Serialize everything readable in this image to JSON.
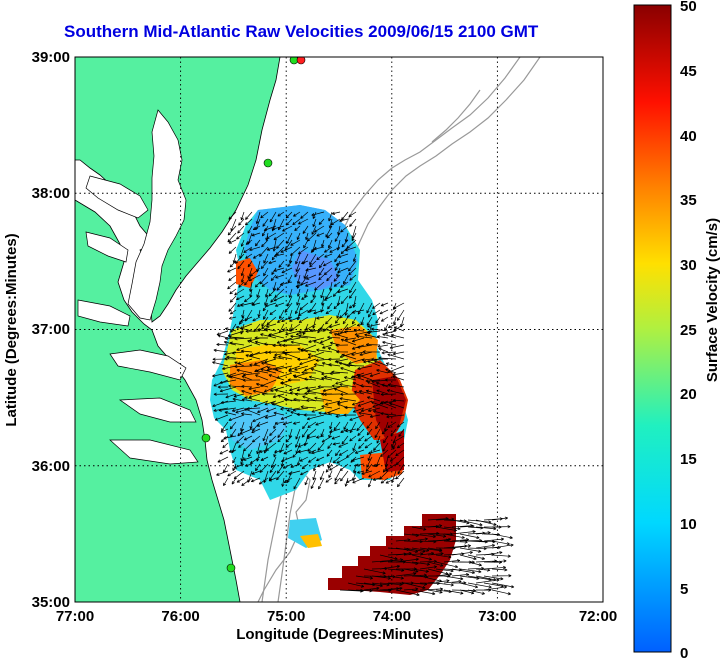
{
  "title": "Southern Mid-Atlantic Raw Velocities 2009/06/15 2100 GMT",
  "xlabel": "Longitude (Degrees:Minutes)",
  "ylabel": "Latitude (Degrees:Minutes)",
  "xticks": [
    "77:00",
    "76:00",
    "75:00",
    "74:00",
    "73:00",
    "72:00"
  ],
  "yticks": [
    "39:00",
    "38:00",
    "37:00",
    "36:00",
    "35:00"
  ],
  "colorbar": {
    "label": "Surface Velocity (cm/s)",
    "ticks": [
      "50",
      "45",
      "40",
      "35",
      "30",
      "25",
      "20",
      "15",
      "10",
      "5",
      "0"
    ],
    "range_cm_s": [
      0,
      50
    ]
  },
  "colors": {
    "land": "#55f0a0",
    "water": "#ffffff",
    "title": "#0000e0",
    "grid": "#000000",
    "station_markers": "#22dd22",
    "station_marker_offshore": "#ff2020"
  },
  "map_extent": {
    "lon": [
      -77,
      -72
    ],
    "lat": [
      35,
      39
    ]
  },
  "grid": true,
  "gridline_style": "dotted"
}
